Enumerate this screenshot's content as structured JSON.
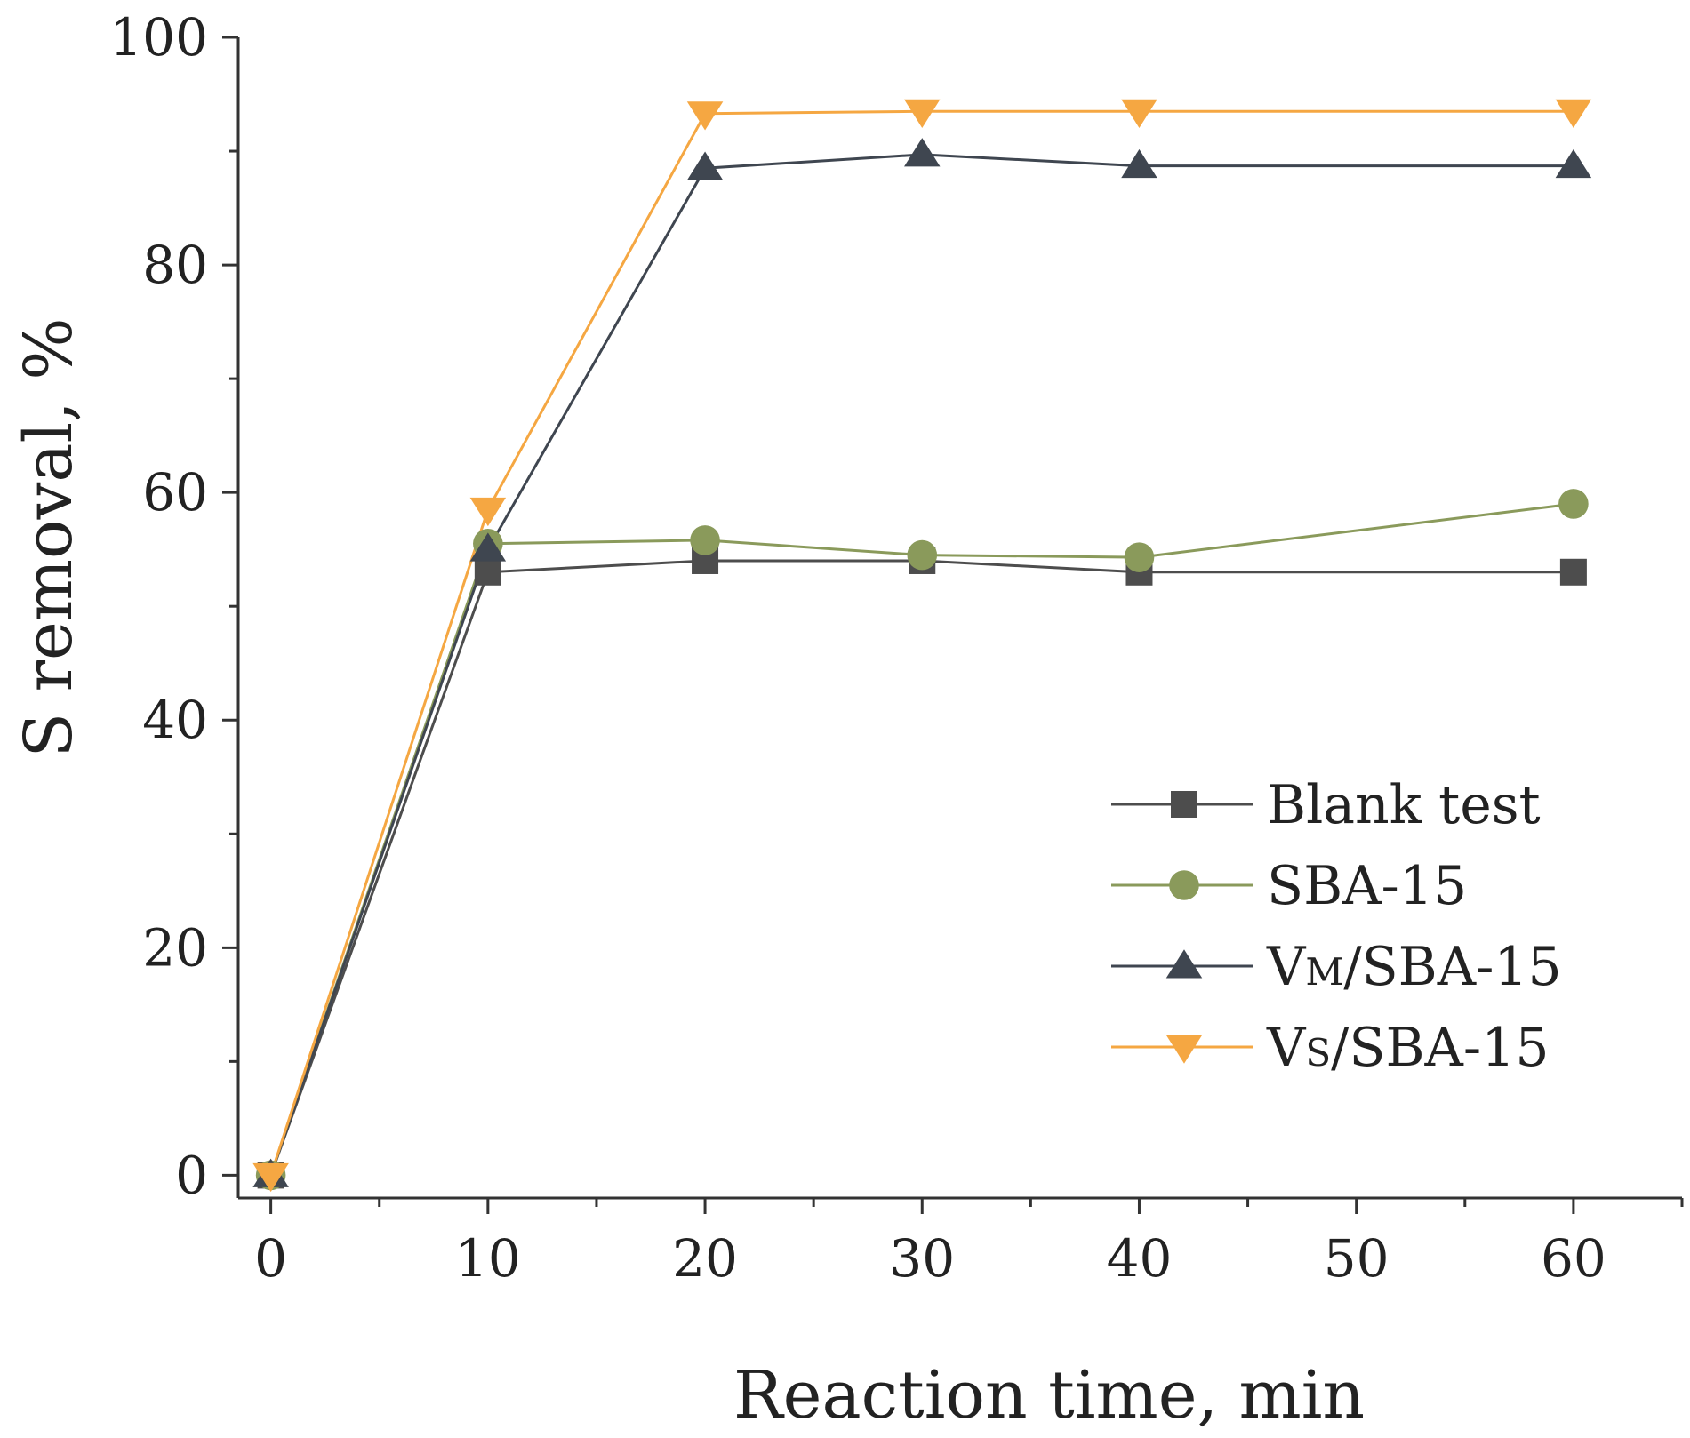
{
  "chart_data": {
    "type": "line",
    "title": "",
    "xlabel": "Reaction time, min",
    "ylabel": "S removal, %",
    "x": [
      0,
      10,
      20,
      30,
      40,
      60
    ],
    "xlim": [
      -1.5,
      65
    ],
    "ylim": [
      -2,
      100
    ],
    "xticks": [
      0,
      10,
      20,
      30,
      40,
      50,
      60
    ],
    "yticks": [
      0,
      20,
      40,
      60,
      80,
      100
    ],
    "grid": false,
    "legend_position": "right-middle",
    "series": [
      {
        "name": "Blank test",
        "marker": "square",
        "color": "#4d4d4d",
        "values": [
          0,
          53,
          54,
          54,
          53,
          53
        ]
      },
      {
        "name": "SBA-15",
        "marker": "circle",
        "color": "#8a9a5b",
        "values": [
          0,
          55.5,
          55.8,
          54.5,
          54.3,
          59
        ]
      },
      {
        "name": "VM/SBA-15",
        "marker": "triangle-up",
        "color": "#3f4650",
        "values": [
          0,
          55,
          88.5,
          89.7,
          88.7,
          88.7
        ]
      },
      {
        "name": "VS/SBA-15",
        "marker": "triangle-down",
        "color": "#f5a742",
        "values": [
          0,
          58.5,
          93.3,
          93.5,
          93.5,
          93.5
        ]
      }
    ],
    "legend": [
      {
        "prefix": "Blank test",
        "sub": "",
        "suffix": ""
      },
      {
        "prefix": "SBA-15",
        "sub": "",
        "suffix": ""
      },
      {
        "prefix": "V",
        "sub": "M",
        "suffix": "/SBA-15"
      },
      {
        "prefix": "V",
        "sub": "S",
        "suffix": "/SBA-15"
      }
    ]
  }
}
